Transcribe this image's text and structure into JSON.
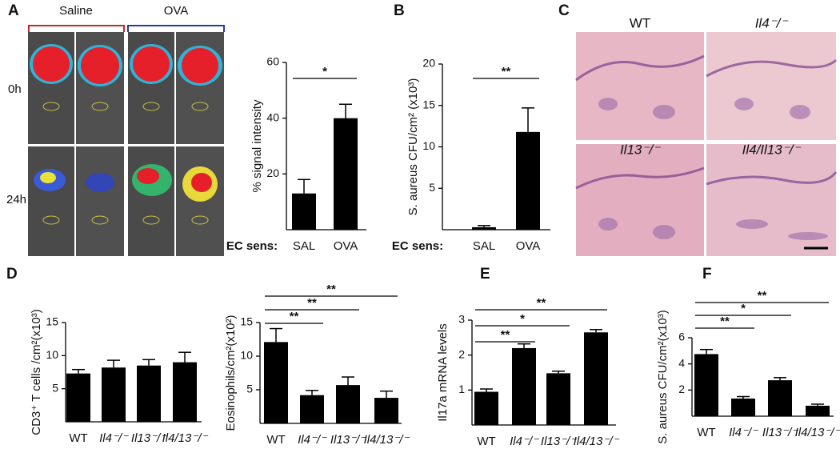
{
  "panel_labels": [
    "A",
    "B",
    "C",
    "D",
    "E",
    "F"
  ],
  "imaging": {
    "groups": [
      "Saline",
      "OVA"
    ],
    "timepoints": [
      "0h",
      "24h"
    ]
  },
  "histology": {
    "labels": [
      "WT",
      "Il4⁻/⁻",
      "Il13⁻/⁻",
      "Il4/Il13⁻/⁻"
    ]
  },
  "chart_data": [
    {
      "type": "bar",
      "ylabel": "% signal intensity",
      "xlabel": "EC sens:",
      "categories": [
        "SAL",
        "OVA"
      ],
      "values": [
        13,
        40
      ],
      "errors": [
        5,
        5
      ],
      "ylim": [
        0,
        60
      ],
      "yticks": [
        20,
        40,
        60
      ],
      "significance": [
        "*"
      ],
      "color": "#000000"
    },
    {
      "type": "bar",
      "ylabel": "S. aureus CFU/cm² (x10³)",
      "xlabel": "EC sens:",
      "categories": [
        "SAL",
        "OVA"
      ],
      "values": [
        0.3,
        11.8
      ],
      "errors": [
        0.2,
        2.9
      ],
      "ylim": [
        0,
        20
      ],
      "yticks": [
        5,
        10,
        15,
        20
      ],
      "significance": [
        "**"
      ],
      "color": "#000000"
    },
    {
      "type": "bar",
      "ylabel": "CD3⁺ T cells /cm²(x10³)",
      "categories": [
        "WT",
        "Il4⁻/⁻",
        "Il13⁻/⁻",
        "Il4/13⁻/⁻"
      ],
      "values": [
        7.3,
        8.2,
        8.5,
        9.0
      ],
      "errors": [
        0.6,
        1.1,
        0.9,
        1.5
      ],
      "ylim": [
        0,
        15
      ],
      "yticks": [
        5,
        10,
        15
      ],
      "significance": [],
      "color": "#000000"
    },
    {
      "type": "bar",
      "ylabel": "Eosinophils/cm²(x10²)",
      "categories": [
        "WT",
        "Il4⁻/⁻",
        "Il13⁻/⁻",
        "Il4/13⁻/⁻"
      ],
      "values": [
        12.1,
        4.2,
        5.7,
        3.8
      ],
      "errors": [
        2.0,
        0.7,
        1.2,
        1.0
      ],
      "ylim": [
        0,
        15
      ],
      "yticks": [
        5,
        10,
        15
      ],
      "significance": [
        "**",
        "**",
        "**"
      ],
      "color": "#000000"
    },
    {
      "type": "bar",
      "ylabel": "Il17a mRNA levels",
      "categories": [
        "WT",
        "Il4⁻/⁻",
        "Il13⁻/⁻",
        "Il4/13⁻/⁻"
      ],
      "values": [
        0.95,
        2.2,
        1.48,
        2.65
      ],
      "errors": [
        0.08,
        0.12,
        0.06,
        0.08
      ],
      "ylim": [
        0,
        3
      ],
      "yticks": [
        1,
        2,
        3
      ],
      "significance": [
        "**",
        "*",
        "**"
      ],
      "color": "#000000"
    },
    {
      "type": "bar",
      "ylabel": "S. aureus CFU/cm²(x10³)",
      "categories": [
        "WT",
        "Il4⁻/⁻",
        "Il13⁻/⁻",
        "Il4/13⁻/⁻"
      ],
      "values": [
        4.75,
        1.35,
        2.75,
        0.8
      ],
      "errors": [
        0.35,
        0.15,
        0.2,
        0.12
      ],
      "ylim": [
        0,
        6
      ],
      "yticks": [
        2,
        4,
        6
      ],
      "significance": [
        "**",
        "*",
        "**"
      ],
      "color": "#000000"
    }
  ]
}
